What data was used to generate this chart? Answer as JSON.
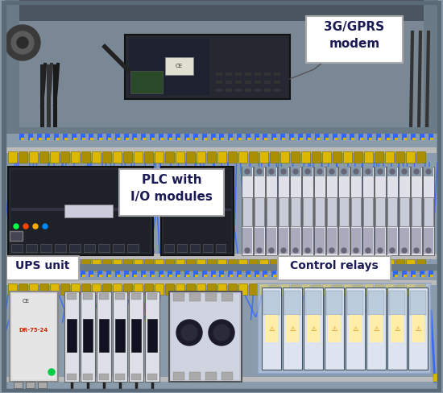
{
  "bg_outer": "#8a9aaa",
  "bg_top": "#8090a0",
  "bg_mid": "#8a9cb0",
  "bg_bot": "#8a9cb0",
  "panel_border": "#5a6a76",
  "divider_color": "#6a7a86",
  "label_box": "#ffffff",
  "label_text": "#1a1a55",
  "label_fontsize": 10,
  "wire_blue": "#3366ff",
  "wire_blue2": "#2255dd",
  "terminal_yellow": "#ddb800",
  "terminal_dark": "#aa9000",
  "din_rail": "#bbbbbb",
  "component_dark": "#22252e",
  "component_mid": "#383c48",
  "relay_body": "#e0e0e8",
  "relay_blue": "#4488cc",
  "relay_top": "#8899aa",
  "cb_body": "#dde0e8",
  "cb_handle": "#111122",
  "ups_body": "#dddddd",
  "contactor_body": "#c8ccd8",
  "modem_box": "#252830",
  "section_sep": "#7a8a94",
  "labels": {
    "gprs": "3G/GPRS\nmodem",
    "plc": "PLC with\nI/O modules",
    "ups": "UPS unit",
    "relays": "Control relays"
  }
}
